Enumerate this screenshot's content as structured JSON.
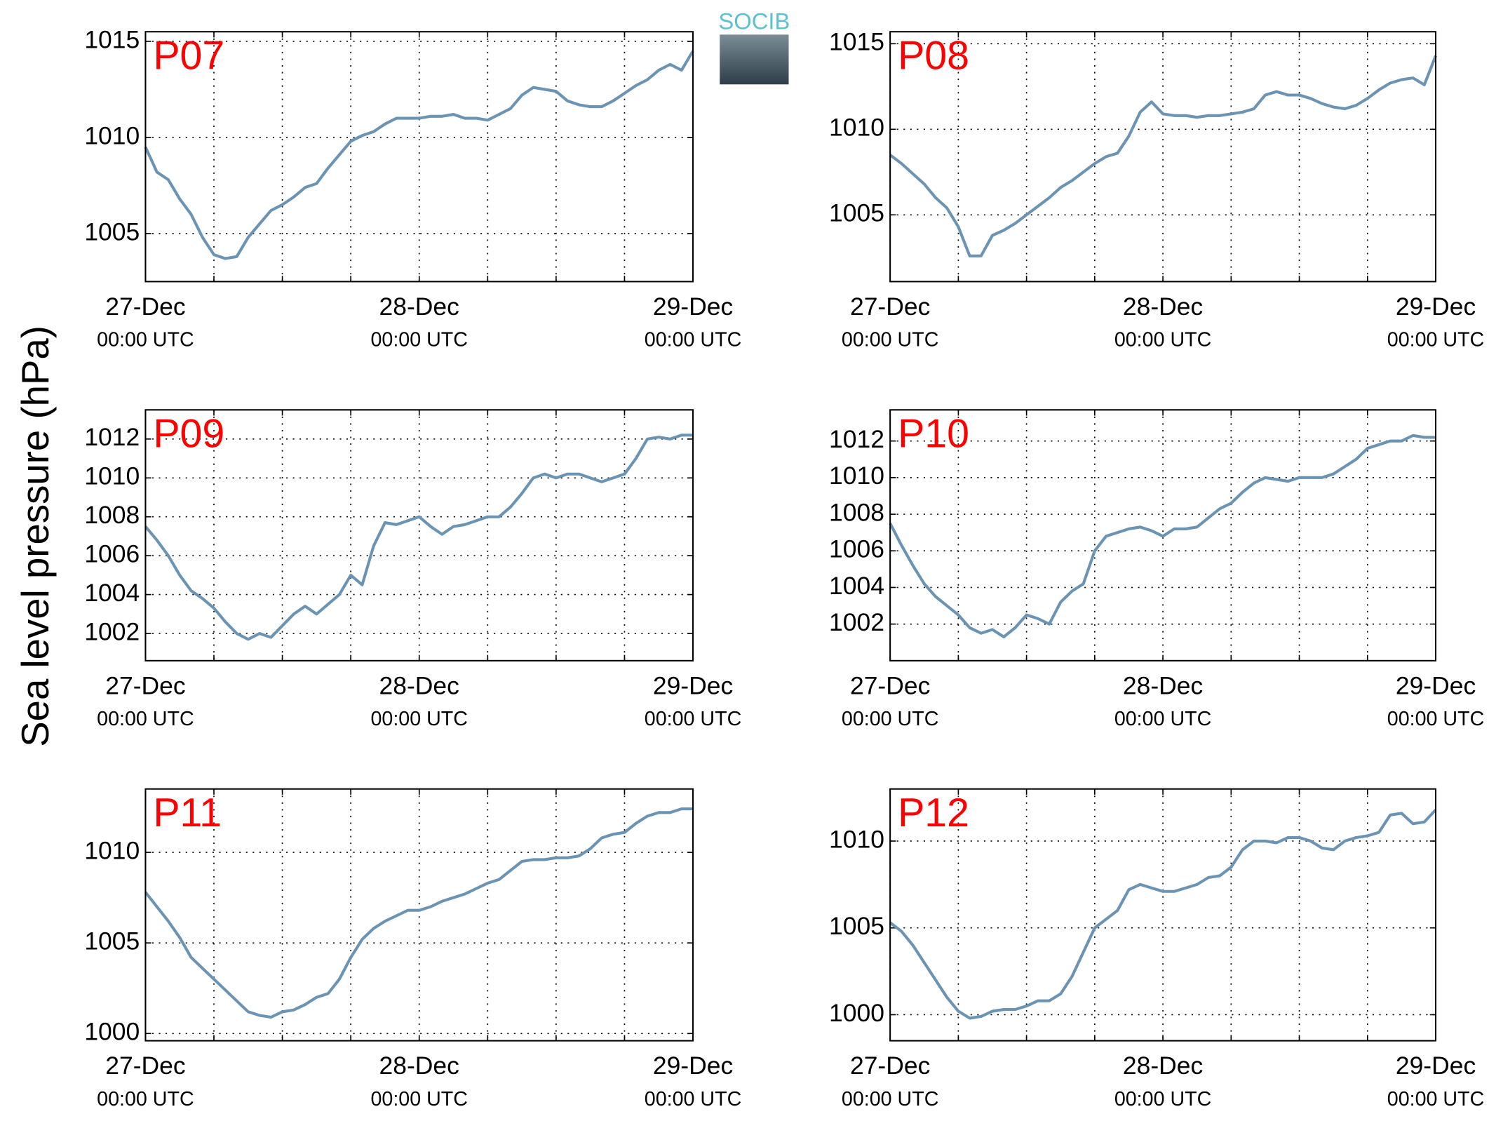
{
  "ylabel": "Sea level pressure (hPa)",
  "logo": "SOCIB",
  "chart_data": [
    {
      "type": "line",
      "title": "P07",
      "color": "#6a93b4",
      "grid": true,
      "x": [
        0,
        1,
        2,
        3,
        4,
        5,
        6,
        7,
        8,
        9,
        10,
        11,
        12,
        13,
        14,
        15,
        16,
        17,
        18,
        19,
        20,
        21,
        22,
        23,
        24,
        25,
        26,
        27,
        28,
        29,
        30,
        31,
        32,
        33,
        34,
        35,
        36,
        37,
        38,
        39,
        40,
        41,
        42,
        43,
        44,
        45,
        46,
        47,
        48
      ],
      "values": [
        1009.5,
        1008.2,
        1007.8,
        1006.8,
        1006.0,
        1004.8,
        1003.9,
        1003.7,
        1003.8,
        1004.8,
        1005.5,
        1006.2,
        1006.5,
        1006.9,
        1007.4,
        1007.6,
        1008.4,
        1009.1,
        1009.8,
        1010.1,
        1010.3,
        1010.7,
        1011.0,
        1011.0,
        1011.0,
        1011.1,
        1011.1,
        1011.2,
        1011.0,
        1011.0,
        1010.9,
        1011.2,
        1011.5,
        1012.2,
        1012.6,
        1012.5,
        1012.4,
        1011.9,
        1011.7,
        1011.6,
        1011.6,
        1011.9,
        1012.3,
        1012.7,
        1013.0,
        1013.5,
        1013.8,
        1013.5,
        1014.5
      ],
      "xlim": [
        0,
        48
      ],
      "xticks": [
        {
          "value": 0,
          "label": "27-Dec",
          "sublabel": "00:00 UTC"
        },
        {
          "value": 24,
          "label": "28-Dec",
          "sublabel": "00:00 UTC"
        },
        {
          "value": 48,
          "label": "29-Dec",
          "sublabel": "00:00 UTC"
        }
      ],
      "xminorticks": [
        6,
        12,
        18,
        30,
        36,
        42
      ],
      "ylim": [
        1002.5,
        1015.5
      ],
      "yticks": [
        1005,
        1010,
        1015
      ]
    },
    {
      "type": "line",
      "title": "P08",
      "color": "#6a93b4",
      "grid": true,
      "x": [
        0,
        1,
        2,
        3,
        4,
        5,
        6,
        7,
        8,
        9,
        10,
        11,
        12,
        13,
        14,
        15,
        16,
        17,
        18,
        19,
        20,
        21,
        22,
        23,
        24,
        25,
        26,
        27,
        28,
        29,
        30,
        31,
        32,
        33,
        34,
        35,
        36,
        37,
        38,
        39,
        40,
        41,
        42,
        43,
        44,
        45,
        46,
        47,
        48
      ],
      "values": [
        1008.5,
        1008.0,
        1007.4,
        1006.8,
        1006.0,
        1005.4,
        1004.3,
        1002.6,
        1002.6,
        1003.8,
        1004.1,
        1004.5,
        1005.0,
        1005.5,
        1006.0,
        1006.6,
        1007.0,
        1007.5,
        1008.0,
        1008.4,
        1008.6,
        1009.6,
        1011.0,
        1011.6,
        1010.9,
        1010.8,
        1010.8,
        1010.7,
        1010.8,
        1010.8,
        1010.9,
        1011.0,
        1011.2,
        1012.0,
        1012.2,
        1012.0,
        1012.0,
        1011.8,
        1011.5,
        1011.3,
        1011.2,
        1011.4,
        1011.8,
        1012.3,
        1012.7,
        1012.9,
        1013.0,
        1012.6,
        1014.3
      ],
      "xlim": [
        0,
        48
      ],
      "xticks": [
        {
          "value": 0,
          "label": "27-Dec",
          "sublabel": "00:00 UTC"
        },
        {
          "value": 24,
          "label": "28-Dec",
          "sublabel": "00:00 UTC"
        },
        {
          "value": 48,
          "label": "29-Dec",
          "sublabel": "00:00 UTC"
        }
      ],
      "xminorticks": [
        6,
        12,
        18,
        30,
        36,
        42
      ],
      "ylim": [
        1001.1,
        1015.7
      ],
      "yticks": [
        1005,
        1010,
        1015
      ]
    },
    {
      "type": "line",
      "title": "P09",
      "color": "#6a93b4",
      "grid": true,
      "x": [
        0,
        1,
        2,
        3,
        4,
        5,
        6,
        7,
        8,
        9,
        10,
        11,
        12,
        13,
        14,
        15,
        16,
        17,
        18,
        19,
        20,
        21,
        22,
        23,
        24,
        25,
        26,
        27,
        28,
        29,
        30,
        31,
        32,
        33,
        34,
        35,
        36,
        37,
        38,
        39,
        40,
        41,
        42,
        43,
        44,
        45,
        46,
        47,
        48
      ],
      "values": [
        1007.5,
        1006.8,
        1006.0,
        1005.0,
        1004.2,
        1003.8,
        1003.3,
        1002.6,
        1002.0,
        1001.7,
        1002.0,
        1001.8,
        1002.4,
        1003.0,
        1003.4,
        1003.0,
        1003.5,
        1004.0,
        1005.0,
        1004.5,
        1006.5,
        1007.7,
        1007.6,
        1007.8,
        1008.0,
        1007.5,
        1007.1,
        1007.5,
        1007.6,
        1007.8,
        1008.0,
        1008.0,
        1008.5,
        1009.2,
        1010.0,
        1010.2,
        1010.0,
        1010.2,
        1010.2,
        1010.0,
        1009.8,
        1010.0,
        1010.2,
        1011.0,
        1012.0,
        1012.1,
        1012.0,
        1012.2,
        1012.2
      ],
      "xlim": [
        0,
        48
      ],
      "xticks": [
        {
          "value": 0,
          "label": "27-Dec",
          "sublabel": "00:00 UTC"
        },
        {
          "value": 24,
          "label": "28-Dec",
          "sublabel": "00:00 UTC"
        },
        {
          "value": 48,
          "label": "29-Dec",
          "sublabel": "00:00 UTC"
        }
      ],
      "xminorticks": [
        6,
        12,
        18,
        30,
        36,
        42
      ],
      "ylim": [
        1000.6,
        1013.5
      ],
      "yticks": [
        1002,
        1004,
        1006,
        1008,
        1010,
        1012
      ]
    },
    {
      "type": "line",
      "title": "P10",
      "color": "#6a93b4",
      "grid": true,
      "x": [
        0,
        1,
        2,
        3,
        4,
        5,
        6,
        7,
        8,
        9,
        10,
        11,
        12,
        13,
        14,
        15,
        16,
        17,
        18,
        19,
        20,
        21,
        22,
        23,
        24,
        25,
        26,
        27,
        28,
        29,
        30,
        31,
        32,
        33,
        34,
        35,
        36,
        37,
        38,
        39,
        40,
        41,
        42,
        43,
        44,
        45,
        46,
        47,
        48
      ],
      "values": [
        1007.5,
        1006.3,
        1005.2,
        1004.2,
        1003.5,
        1003.0,
        1002.5,
        1001.8,
        1001.5,
        1001.7,
        1001.3,
        1001.8,
        1002.5,
        1002.3,
        1002.0,
        1003.2,
        1003.8,
        1004.2,
        1006.0,
        1006.8,
        1007.0,
        1007.2,
        1007.3,
        1007.1,
        1006.8,
        1007.2,
        1007.2,
        1007.3,
        1007.8,
        1008.3,
        1008.6,
        1009.2,
        1009.7,
        1010.0,
        1009.9,
        1009.8,
        1010.0,
        1010.0,
        1010.0,
        1010.2,
        1010.6,
        1011.0,
        1011.6,
        1011.8,
        1012.0,
        1012.0,
        1012.3,
        1012.2,
        1012.2
      ],
      "xlim": [
        0,
        48
      ],
      "xticks": [
        {
          "value": 0,
          "label": "27-Dec",
          "sublabel": "00:00 UTC"
        },
        {
          "value": 24,
          "label": "28-Dec",
          "sublabel": "00:00 UTC"
        },
        {
          "value": 48,
          "label": "29-Dec",
          "sublabel": "00:00 UTC"
        }
      ],
      "xminorticks": [
        6,
        12,
        18,
        30,
        36,
        42
      ],
      "ylim": [
        1000.0,
        1013.7
      ],
      "yticks": [
        1002,
        1004,
        1006,
        1008,
        1010,
        1012
      ]
    },
    {
      "type": "line",
      "title": "P11",
      "color": "#6a93b4",
      "grid": true,
      "x": [
        0,
        1,
        2,
        3,
        4,
        5,
        6,
        7,
        8,
        9,
        10,
        11,
        12,
        13,
        14,
        15,
        16,
        17,
        18,
        19,
        20,
        21,
        22,
        23,
        24,
        25,
        26,
        27,
        28,
        29,
        30,
        31,
        32,
        33,
        34,
        35,
        36,
        37,
        38,
        39,
        40,
        41,
        42,
        43,
        44,
        45,
        46,
        47,
        48
      ],
      "values": [
        1007.8,
        1007.0,
        1006.2,
        1005.3,
        1004.2,
        1003.6,
        1003.0,
        1002.4,
        1001.8,
        1001.2,
        1001.0,
        1000.9,
        1001.2,
        1001.3,
        1001.6,
        1002.0,
        1002.2,
        1003.0,
        1004.2,
        1005.2,
        1005.8,
        1006.2,
        1006.5,
        1006.8,
        1006.8,
        1007.0,
        1007.3,
        1007.5,
        1007.7,
        1008.0,
        1008.3,
        1008.5,
        1009.0,
        1009.5,
        1009.6,
        1009.6,
        1009.7,
        1009.7,
        1009.8,
        1010.2,
        1010.8,
        1011.0,
        1011.1,
        1011.6,
        1012.0,
        1012.2,
        1012.2,
        1012.4,
        1012.4
      ],
      "xlim": [
        0,
        48
      ],
      "xticks": [
        {
          "value": 0,
          "label": "27-Dec",
          "sublabel": "00:00 UTC"
        },
        {
          "value": 24,
          "label": "28-Dec",
          "sublabel": "00:00 UTC"
        },
        {
          "value": 48,
          "label": "29-Dec",
          "sublabel": "00:00 UTC"
        }
      ],
      "xminorticks": [
        6,
        12,
        18,
        30,
        36,
        42
      ],
      "ylim": [
        999.6,
        1013.5
      ],
      "yticks": [
        1000,
        1005,
        1010
      ]
    },
    {
      "type": "line",
      "title": "P12",
      "color": "#6a93b4",
      "grid": true,
      "x": [
        0,
        1,
        2,
        3,
        4,
        5,
        6,
        7,
        8,
        9,
        10,
        11,
        12,
        13,
        14,
        15,
        16,
        17,
        18,
        19,
        20,
        21,
        22,
        23,
        24,
        25,
        26,
        27,
        28,
        29,
        30,
        31,
        32,
        33,
        34,
        35,
        36,
        37,
        38,
        39,
        40,
        41,
        42,
        43,
        44,
        45,
        46,
        47,
        48
      ],
      "values": [
        1005.3,
        1004.8,
        1004.0,
        1003.0,
        1002.0,
        1001.0,
        1000.2,
        999.8,
        999.9,
        1000.2,
        1000.3,
        1000.3,
        1000.5,
        1000.8,
        1000.8,
        1001.2,
        1002.2,
        1003.6,
        1005.0,
        1005.5,
        1006.0,
        1007.2,
        1007.5,
        1007.3,
        1007.1,
        1007.1,
        1007.3,
        1007.5,
        1007.9,
        1008.0,
        1008.5,
        1009.5,
        1010.0,
        1010.0,
        1009.9,
        1010.2,
        1010.2,
        1010.0,
        1009.6,
        1009.5,
        1010.0,
        1010.2,
        1010.3,
        1010.5,
        1011.5,
        1011.6,
        1011.0,
        1011.1,
        1011.8
      ],
      "xlim": [
        0,
        48
      ],
      "xticks": [
        {
          "value": 0,
          "label": "27-Dec",
          "sublabel": "00:00 UTC"
        },
        {
          "value": 24,
          "label": "28-Dec",
          "sublabel": "00:00 UTC"
        },
        {
          "value": 48,
          "label": "29-Dec",
          "sublabel": "00:00 UTC"
        }
      ],
      "xminorticks": [
        6,
        12,
        18,
        30,
        36,
        42
      ],
      "ylim": [
        998.5,
        1013.0
      ],
      "yticks": [
        1000,
        1005,
        1010
      ]
    }
  ]
}
